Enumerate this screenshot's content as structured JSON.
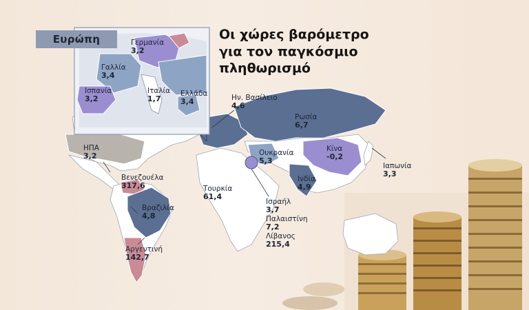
{
  "title": "Οι χώρες βαρόμετρο για τον παγκόσμιο πληθωρισμό",
  "inset": {
    "label": "Ευρώπη"
  },
  "countries": [
    {
      "name": "Γερμανία",
      "value": "3,2"
    },
    {
      "name": "Γαλλία",
      "value": "3,4"
    },
    {
      "name": "Ισπανία",
      "value": "3,2"
    },
    {
      "name": "Ιταλία",
      "value": "1,7"
    },
    {
      "name": "Ελλάδα",
      "value": "3,4"
    },
    {
      "name": "Ην. Βασίλειο",
      "value": "4,6"
    },
    {
      "name": "Ρωσία",
      "value": "6,7"
    },
    {
      "name": "ΗΠΑ",
      "value": "3,2"
    },
    {
      "name": "Ουκρανία",
      "value": "5,3"
    },
    {
      "name": "Κίνα",
      "value": "-0,2"
    },
    {
      "name": "Ιαπωνία",
      "value": "3,3"
    },
    {
      "name": "Ινδία",
      "value": "4,9"
    },
    {
      "name": "Βενεζουέλα",
      "value": "317,6"
    },
    {
      "name": "Τουρκία",
      "value": "61,4"
    },
    {
      "name": "Ισραήλ",
      "value": "3,7"
    },
    {
      "name": "Παλαιστίνη",
      "value": "7,2"
    },
    {
      "name": "Λίβανος",
      "value": "215,4"
    },
    {
      "name": "Βραζιλία",
      "value": "4,8"
    },
    {
      "name": "Αργεντινή",
      "value": "142,7"
    }
  ],
  "colors": {
    "blue": "#5a6f92",
    "light_blue": "#8ea4c4",
    "purple": "#9b8ed0",
    "pink": "#c98b96",
    "gray": "#b8b3ad",
    "white": "#ffffff",
    "dark_outline": "#323b49"
  }
}
